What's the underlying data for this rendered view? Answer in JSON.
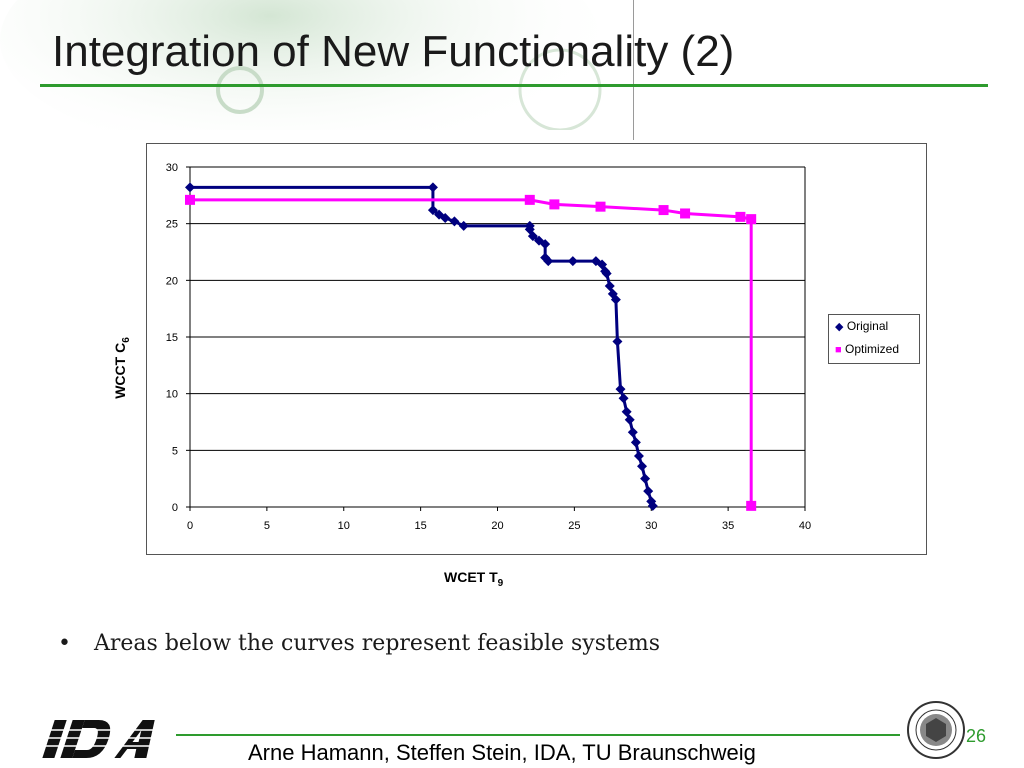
{
  "slide": {
    "title": "Integration of New Functionality (2)",
    "bullet": "Areas below the curves represent feasible systems",
    "footer": "Arne Hamann, Steffen Stein, IDA, TU Braunschweig",
    "page_number": "26",
    "logo_text": "IDA",
    "accent_color": "#2e9b2e"
  },
  "chart_data": {
    "type": "line",
    "xlabel": "WCET T",
    "xlabel_sub": "9",
    "ylabel": "WCCT C",
    "ylabel_sub": "6",
    "xlim": [
      0,
      40
    ],
    "ylim": [
      0,
      30
    ],
    "x_ticks": [
      "0",
      "5",
      "10",
      "15",
      "20",
      "25",
      "30",
      "35",
      "40"
    ],
    "y_ticks": [
      "0",
      "5",
      "10",
      "15",
      "20",
      "25",
      "30"
    ],
    "grid": "horizontal",
    "legend_position": "right",
    "series": [
      {
        "name": "Original",
        "color": "#00007f",
        "marker": "diamond",
        "points": [
          [
            0,
            28.2
          ],
          [
            15.8,
            28.2
          ],
          [
            15.8,
            26.2
          ],
          [
            16.2,
            25.8
          ],
          [
            16.6,
            25.5
          ],
          [
            17.2,
            25.2
          ],
          [
            17.8,
            24.8
          ],
          [
            22.1,
            24.8
          ],
          [
            22.1,
            24.5
          ],
          [
            22.3,
            23.9
          ],
          [
            22.7,
            23.5
          ],
          [
            23.1,
            23.2
          ],
          [
            23.1,
            22.0
          ],
          [
            23.3,
            21.7
          ],
          [
            24.9,
            21.7
          ],
          [
            26.4,
            21.7
          ],
          [
            26.8,
            21.4
          ],
          [
            27.0,
            20.8
          ],
          [
            27.1,
            20.6
          ],
          [
            27.3,
            19.5
          ],
          [
            27.5,
            18.8
          ],
          [
            27.7,
            18.3
          ],
          [
            27.8,
            14.6
          ],
          [
            28.0,
            10.4
          ],
          [
            28.2,
            9.6
          ],
          [
            28.4,
            8.4
          ],
          [
            28.6,
            7.7
          ],
          [
            28.8,
            6.6
          ],
          [
            29.0,
            5.7
          ],
          [
            29.2,
            4.5
          ],
          [
            29.4,
            3.6
          ],
          [
            29.6,
            2.5
          ],
          [
            29.8,
            1.4
          ],
          [
            30.0,
            0.5
          ],
          [
            30.1,
            0.1
          ]
        ]
      },
      {
        "name": "Optimized",
        "color": "#ff00ff",
        "marker": "square",
        "points": [
          [
            0,
            27.1
          ],
          [
            22.1,
            27.1
          ],
          [
            23.7,
            26.7
          ],
          [
            26.7,
            26.5
          ],
          [
            30.8,
            26.2
          ],
          [
            32.2,
            25.9
          ],
          [
            35.8,
            25.6
          ],
          [
            36.5,
            25.4
          ],
          [
            36.5,
            0.1
          ]
        ]
      }
    ]
  }
}
